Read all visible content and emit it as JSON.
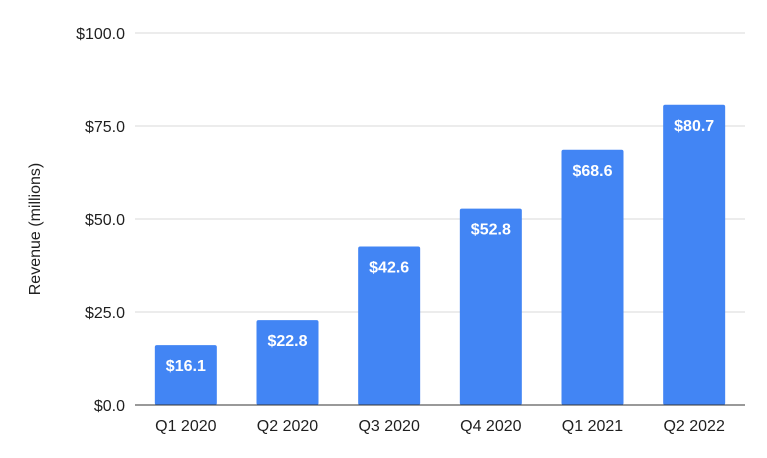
{
  "chart_data": {
    "type": "bar",
    "title": "",
    "xlabel": "",
    "ylabel": "Revenue (millions)",
    "categories": [
      "Q1 2020",
      "Q2 2020",
      "Q3 2020",
      "Q4 2020",
      "Q1 2021",
      "Q2 2022"
    ],
    "values": [
      16.1,
      22.8,
      42.6,
      52.8,
      68.6,
      80.7
    ],
    "data_labels": [
      "$16.1",
      "$22.8",
      "$42.6",
      "$52.8",
      "$68.6",
      "$80.7"
    ],
    "ylim": [
      0,
      100
    ],
    "yticks": [
      0,
      25,
      50,
      75,
      100
    ],
    "ytick_labels": [
      "$0.0",
      "$25.0",
      "$50.0",
      "$75.0",
      "$100.0"
    ],
    "grid": true,
    "legend": "none",
    "colors": {
      "bar": "#4285f4",
      "grid": "#d9d9d9",
      "axis": "#333333"
    }
  }
}
